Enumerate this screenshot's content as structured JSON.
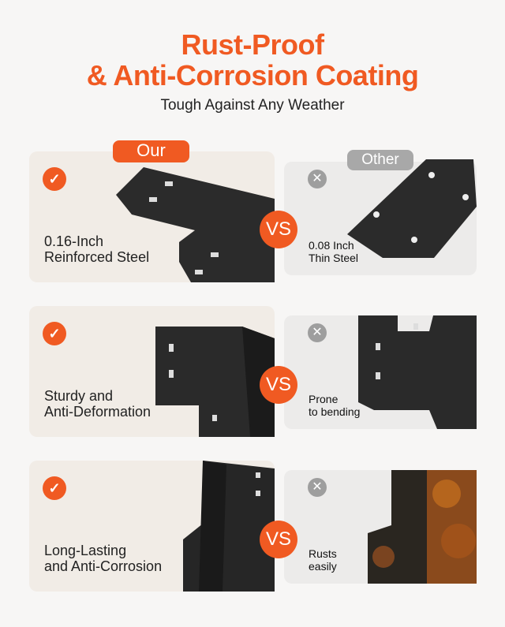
{
  "header": {
    "title_line1": "Rust-Proof",
    "title_line2": "& Anti-Corrosion Coating",
    "subtitle": "Tough Against Any Weather"
  },
  "badges": {
    "ours": "Our",
    "other": "Other"
  },
  "vs_label": "VS",
  "colors": {
    "accent": "#f05a22",
    "gray": "#9e9e9e"
  },
  "icons": {
    "ours": "check-icon",
    "other": "x-icon"
  },
  "rows": [
    {
      "ours": "0.16-Inch\nReinforced Steel",
      "other": "0.08 Inch\nThin Steel"
    },
    {
      "ours": "Sturdy and\nAnti-Deformation",
      "other": "Prone\nto bending"
    },
    {
      "ours": "Long-Lasting\nand Anti-Corrosion",
      "other": "Rusts\neasily"
    }
  ]
}
